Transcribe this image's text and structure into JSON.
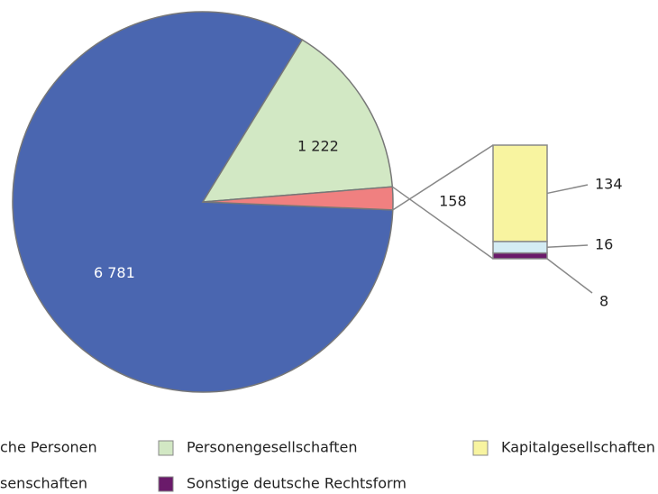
{
  "chart_data": {
    "type": "pie",
    "categories": [
      "che Personen",
      "Personengesellschaften",
      null
    ],
    "values": [
      6781,
      1222,
      158
    ],
    "value_labels": [
      "6 781",
      "1 222",
      "158"
    ],
    "colors": [
      "#4a66b0",
      "#d2e8c4",
      "#f08080"
    ],
    "breakdown": {
      "type": "bar",
      "categories": [
        "Kapitalgesellschaften",
        "senschaften",
        "Sonstige deutsche Rechtsform"
      ],
      "values": [
        134,
        16,
        8
      ],
      "colors": [
        "#f8f4a0",
        "#d4ecf4",
        "#6a1a6a"
      ]
    }
  }
}
